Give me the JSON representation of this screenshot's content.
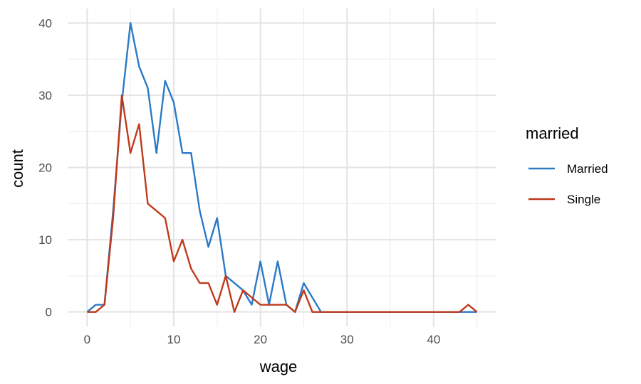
{
  "chart_data": {
    "type": "line",
    "xlabel": "wage",
    "ylabel": "count",
    "xlim": [
      -2.25,
      47.25
    ],
    "ylim": [
      -2,
      42
    ],
    "x_ticks": [
      0,
      10,
      20,
      30,
      40
    ],
    "x_tick_labels": [
      "0",
      "10",
      "20",
      "30",
      "40"
    ],
    "x_minor_ticks": [
      5,
      15,
      25,
      35,
      45
    ],
    "y_ticks": [
      0,
      10,
      20,
      30,
      40
    ],
    "y_tick_labels": [
      "0",
      "10",
      "20",
      "30",
      "40"
    ],
    "y_minor_ticks": [
      5,
      15,
      25,
      35
    ],
    "grid": true,
    "legend": {
      "title": "married",
      "position": "right"
    },
    "series": [
      {
        "name": "Married",
        "color": "#2a7ac6",
        "x": [
          0,
          1,
          2,
          3,
          4,
          5,
          6,
          7,
          8,
          9,
          10,
          11,
          12,
          13,
          14,
          15,
          16,
          17,
          18,
          19,
          20,
          21,
          22,
          23,
          24,
          25,
          26,
          27,
          28,
          29,
          30,
          31,
          32,
          33,
          34,
          35,
          36,
          37,
          38,
          39,
          40,
          41,
          42,
          43,
          44,
          45
        ],
        "y": [
          0,
          1,
          1,
          14,
          29,
          40,
          34,
          31,
          22,
          32,
          29,
          22,
          22,
          14,
          9,
          13,
          5,
          4,
          3,
          1,
          7,
          1,
          7,
          1,
          0,
          4,
          2,
          0,
          0,
          0,
          0,
          0,
          0,
          0,
          0,
          0,
          0,
          0,
          0,
          0,
          0,
          0,
          0,
          0,
          0,
          0
        ]
      },
      {
        "name": "Single",
        "color": "#bf3a1c",
        "x": [
          0,
          1,
          2,
          3,
          4,
          5,
          6,
          7,
          8,
          9,
          10,
          11,
          12,
          13,
          14,
          15,
          16,
          17,
          18,
          19,
          20,
          21,
          22,
          23,
          24,
          25,
          26,
          27,
          28,
          29,
          30,
          31,
          32,
          33,
          34,
          35,
          36,
          37,
          38,
          39,
          40,
          41,
          42,
          43,
          44,
          45
        ],
        "y": [
          0,
          0,
          1,
          13,
          30,
          22,
          26,
          15,
          14,
          13,
          7,
          10,
          6,
          4,
          4,
          1,
          5,
          0,
          3,
          2,
          1,
          1,
          1,
          1,
          0,
          3,
          0,
          0,
          0,
          0,
          0,
          0,
          0,
          0,
          0,
          0,
          0,
          0,
          0,
          0,
          0,
          0,
          0,
          0,
          1,
          0
        ]
      }
    ]
  }
}
